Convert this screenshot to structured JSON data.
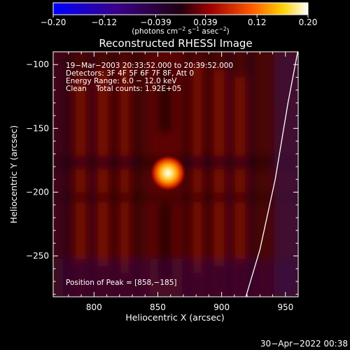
{
  "chart_data": {
    "type": "heatmap",
    "title": "Reconstructed RHESSI Image",
    "xlabel": "Heliocentric X (arcsec)",
    "ylabel": "Heliocentric Y (arcsec)",
    "xlim": [
      768,
      960
    ],
    "ylim": [
      -282,
      -90
    ],
    "x_ticks": [
      800,
      850,
      900,
      950
    ],
    "y_ticks": [
      -100,
      -150,
      -200,
      -250
    ],
    "colorbar": {
      "range": [
        -0.2,
        0.2
      ],
      "ticks": [
        -0.2,
        -0.12,
        -0.039,
        0.039,
        0.12,
        0.2
      ],
      "tick_labels": [
        "−0.20",
        "−0.12",
        "−0.039",
        "0.039",
        "0.12",
        "0.20"
      ],
      "label_main": "(photons cm",
      "label_exp1": "−2",
      "label_mid1": " s",
      "label_exp2": "−1",
      "label_mid2": " asec",
      "label_exp3": "−2",
      "label_end": ")"
    },
    "annotations": [
      "19−Mar−2003 20:33:52.000 to 20:39:52.000",
      "Detectors: 3F 4F 5F 6F 7F 8F, Att 0",
      "Energy Range: 6.0 − 12.0 keV",
      "Clean    Total counts: 1.92E+05"
    ],
    "peak_label": "Position of Peak = [858,−185]",
    "peak": {
      "x": 858,
      "y": -185,
      "value": 0.2
    },
    "limb_curve": [
      [
        960,
        -88
      ],
      [
        952,
        -130
      ],
      [
        942,
        -190
      ],
      [
        930,
        -245
      ],
      [
        919,
        -282
      ]
    ]
  },
  "footer": {
    "timestamp": "30−Apr−2022 00:38"
  },
  "colors": {
    "limb": "#ffffff",
    "background": "#000000"
  }
}
